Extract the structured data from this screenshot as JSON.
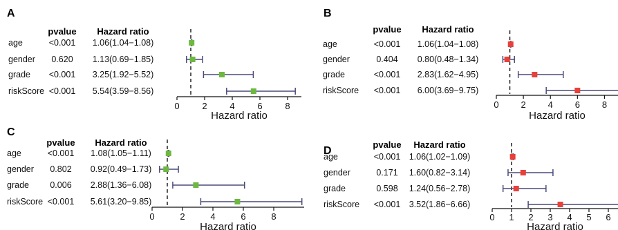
{
  "chart_data": [
    {
      "type": "forest",
      "panel": "A",
      "col_pvalue": "pvalue",
      "col_hr": "Hazard ratio",
      "xlabel": "Hazard ratio",
      "xlim": [
        0,
        9
      ],
      "xticks": [
        "0",
        "2",
        "4",
        "6",
        "8"
      ],
      "ref_line": 1,
      "color": "#6db83f",
      "rows": [
        {
          "variable": "age",
          "pvalue": "<0.001",
          "hr_text": "1.06(1.04−1.08)",
          "hr": 1.06,
          "low": 1.04,
          "high": 1.08
        },
        {
          "variable": "gender",
          "pvalue": "0.620",
          "hr_text": "1.13(0.69−1.85)",
          "hr": 1.13,
          "low": 0.69,
          "high": 1.85
        },
        {
          "variable": "grade",
          "pvalue": "<0.001",
          "hr_text": "3.25(1.92−5.52)",
          "hr": 3.25,
          "low": 1.92,
          "high": 5.52
        },
        {
          "variable": "riskScore",
          "pvalue": "<0.001",
          "hr_text": "5.54(3.59−8.56)",
          "hr": 5.54,
          "low": 3.59,
          "high": 8.56
        }
      ]
    },
    {
      "type": "forest",
      "panel": "B",
      "col_pvalue": "pvalue",
      "col_hr": "Hazard ratio",
      "xlabel": "Hazard ratio",
      "xlim": [
        0,
        9
      ],
      "xticks": [
        "0",
        "2",
        "4",
        "6",
        "8"
      ],
      "ref_line": 1,
      "color": "#e8403a",
      "rows": [
        {
          "variable": "age",
          "pvalue": "<0.001",
          "hr_text": "1.06(1.04−1.08)",
          "hr": 1.06,
          "low": 1.04,
          "high": 1.08
        },
        {
          "variable": "gender",
          "pvalue": "0.404",
          "hr_text": "0.80(0.48−1.34)",
          "hr": 0.8,
          "low": 0.48,
          "high": 1.34
        },
        {
          "variable": "grade",
          "pvalue": "<0.001",
          "hr_text": "2.83(1.62−4.95)",
          "hr": 2.83,
          "low": 1.62,
          "high": 4.95
        },
        {
          "variable": "riskScore",
          "pvalue": "<0.001",
          "hr_text": "6.00(3.69−9.75)",
          "hr": 6.0,
          "low": 3.69,
          "high": 9.75
        }
      ]
    },
    {
      "type": "forest",
      "panel": "C",
      "col_pvalue": "pvalue",
      "col_hr": "Hazard ratio",
      "xlabel": "Hazard ratio",
      "xlim": [
        0,
        10
      ],
      "xticks": [
        "0",
        "2",
        "4",
        "6",
        "8"
      ],
      "ref_line": 1,
      "color": "#6db83f",
      "rows": [
        {
          "variable": "age",
          "pvalue": "<0.001",
          "hr_text": "1.08(1.05−1.11)",
          "hr": 1.08,
          "low": 1.05,
          "high": 1.11
        },
        {
          "variable": "gender",
          "pvalue": "0.802",
          "hr_text": "0.92(0.49−1.73)",
          "hr": 0.92,
          "low": 0.49,
          "high": 1.73
        },
        {
          "variable": "grade",
          "pvalue": "0.006",
          "hr_text": "2.88(1.36−6.08)",
          "hr": 2.88,
          "low": 1.36,
          "high": 6.08
        },
        {
          "variable": "riskScore",
          "pvalue": "<0.001",
          "hr_text": "5.61(3.20−9.85)",
          "hr": 5.61,
          "low": 3.2,
          "high": 9.85
        }
      ]
    },
    {
      "type": "forest",
      "panel": "D",
      "col_pvalue": "pvalue",
      "col_hr": "Hazard ratio",
      "xlabel": "Hazard ratio",
      "xlim": [
        0,
        6.5
      ],
      "xticks": [
        "0",
        "1",
        "2",
        "3",
        "4",
        "5",
        "6"
      ],
      "ref_line": 1,
      "color": "#e8403a",
      "rows": [
        {
          "variable": "age",
          "pvalue": "<0.001",
          "hr_text": "1.06(1.02−1.09)",
          "hr": 1.06,
          "low": 1.02,
          "high": 1.09
        },
        {
          "variable": "gender",
          "pvalue": "0.171",
          "hr_text": "1.60(0.82−3.14)",
          "hr": 1.6,
          "low": 0.82,
          "high": 3.14
        },
        {
          "variable": "grade",
          "pvalue": "0.598",
          "hr_text": "1.24(0.56−2.78)",
          "hr": 1.24,
          "low": 0.56,
          "high": 2.78
        },
        {
          "variable": "riskScore",
          "pvalue": "<0.001",
          "hr_text": "3.52(1.86−6.66)",
          "hr": 3.52,
          "low": 1.86,
          "high": 6.66
        }
      ]
    }
  ]
}
